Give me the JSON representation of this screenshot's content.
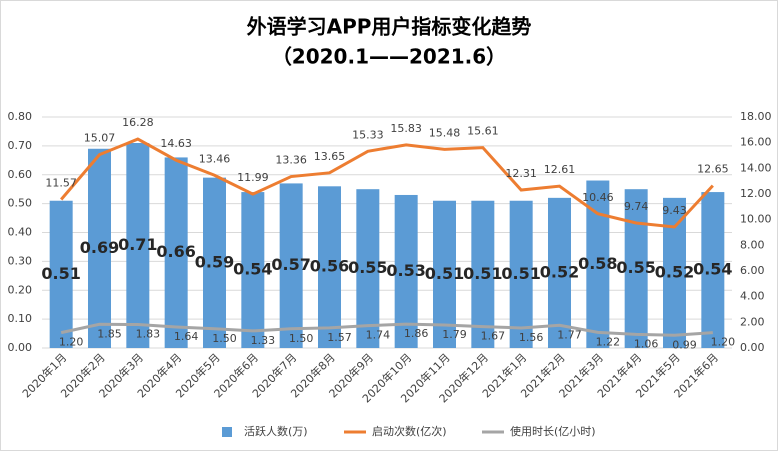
{
  "chart_data": {
    "type": "bar-line",
    "title": "外语学习APP用户指标变化趋势",
    "subtitle": "（2020.1——2021.6）",
    "categories": [
      "2020年1月",
      "2020年2月",
      "2020年3月",
      "2020年4月",
      "2020年5月",
      "2020年6月",
      "2020年7月",
      "2020年8月",
      "2020年9月",
      "2020年10月",
      "2020年11月",
      "2020年12月",
      "2021年1月",
      "2021年2月",
      "2021年3月",
      "2021年4月",
      "2021年5月",
      "2021年6月"
    ],
    "series": [
      {
        "name": "活跃人数(万)",
        "type": "bar",
        "axis": "y",
        "color": "#5b9bd5",
        "values": [
          0.51,
          0.69,
          0.71,
          0.66,
          0.59,
          0.54,
          0.57,
          0.56,
          0.55,
          0.53,
          0.51,
          0.51,
          0.51,
          0.52,
          0.58,
          0.55,
          0.52,
          0.54
        ]
      },
      {
        "name": "启动次数(亿次)",
        "type": "line",
        "axis": "y2",
        "color": "#ed7d31",
        "values": [
          11.57,
          15.07,
          16.28,
          14.63,
          13.46,
          11.99,
          13.36,
          13.65,
          15.33,
          15.83,
          15.48,
          15.61,
          12.31,
          12.61,
          10.46,
          9.74,
          9.43,
          12.65
        ]
      },
      {
        "name": "使用时长(亿小时)",
        "type": "line",
        "axis": "y2",
        "color": "#a5a5a5",
        "values": [
          1.2,
          1.85,
          1.83,
          1.64,
          1.5,
          1.33,
          1.5,
          1.57,
          1.74,
          1.86,
          1.79,
          1.67,
          1.56,
          1.77,
          1.22,
          1.06,
          0.99,
          1.2
        ],
        "value_labels": [
          "1.20",
          "1.85",
          "1.83",
          "1.64",
          "1.50",
          "1.33",
          "1.50",
          "1.57",
          "1.74",
          "1.86",
          "1.79",
          "1.67",
          "1.56",
          "1.77",
          "1.22",
          "1.06",
          "0.99",
          "1.20"
        ]
      }
    ],
    "ylim": [
      0,
      0.8
    ],
    "yticks": [
      {
        "value": 0,
        "label": "0.00"
      },
      {
        "value": 0.1,
        "label": "0.10"
      },
      {
        "value": 0.2,
        "label": "0.20"
      },
      {
        "value": 0.3,
        "label": "0.30"
      },
      {
        "value": 0.4,
        "label": "0.40"
      },
      {
        "value": 0.5,
        "label": "0.50"
      },
      {
        "value": 0.6,
        "label": "0.60"
      },
      {
        "value": 0.7,
        "label": "0.70"
      },
      {
        "value": 0.8,
        "label": "0.80"
      }
    ],
    "y2lim": [
      0,
      18
    ],
    "y2ticks": [
      {
        "value": 0,
        "label": "0.00"
      },
      {
        "value": 2,
        "label": "2.00"
      },
      {
        "value": 4,
        "label": "4.00"
      },
      {
        "value": 6,
        "label": "6.00"
      },
      {
        "value": 8,
        "label": "8.00"
      },
      {
        "value": 10,
        "label": "10.00"
      },
      {
        "value": 12,
        "label": "12.00"
      },
      {
        "value": 14,
        "label": "14.00"
      },
      {
        "value": 16,
        "label": "16.00"
      },
      {
        "value": 18,
        "label": "18.00"
      }
    ],
    "grid": true,
    "legend": "bottom"
  }
}
